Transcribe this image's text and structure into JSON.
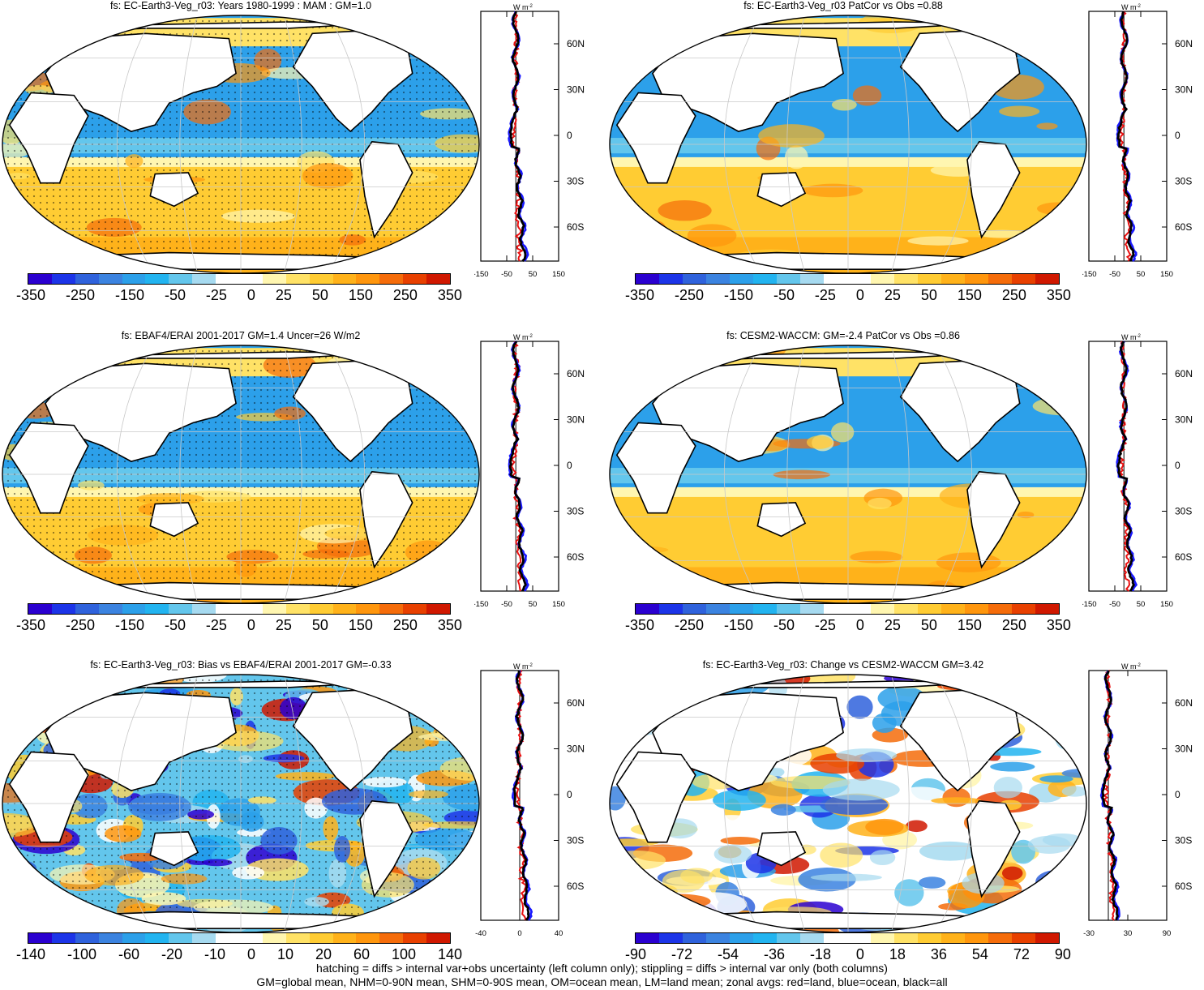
{
  "panels": [
    {
      "id": "p1",
      "title": "fs: EC-Earth3-Veg_r03: Years 1980-1999 : MAM : GM=1.0",
      "scale": "main",
      "variant": 0
    },
    {
      "id": "p2",
      "title": "fs: EC-Earth3-Veg_r03 PatCor vs Obs =0.88",
      "scale": "main",
      "variant": 1
    },
    {
      "id": "p3",
      "title": "fs: EBAF4/ERAI 2001-2017 GM=1.4 Uncer=26 W/m2",
      "scale": "main",
      "variant": 2
    },
    {
      "id": "p4",
      "title": "fs: CESM2-WACCM: GM=-2.4 PatCor vs Obs =0.86",
      "scale": "main",
      "variant": 3
    },
    {
      "id": "p5",
      "title": "fs: EC-Earth3-Veg_r03: Bias vs EBAF4/ERAI 2001-2017 GM=-0.33",
      "scale": "bias",
      "variant": 4
    },
    {
      "id": "p6",
      "title": "fs: EC-Earth3-Veg_r03: Change vs CESM2-WACCM GM=3.42",
      "scale": "change",
      "variant": 5
    }
  ],
  "colorbars": {
    "main": [
      "-350",
      "-250",
      "-150",
      "-50",
      "-25",
      "0",
      "25",
      "50",
      "150",
      "250",
      "350"
    ],
    "bias": [
      "-140",
      "-100",
      "-60",
      "-20",
      "-10",
      "0",
      "10",
      "20",
      "60",
      "100",
      "140"
    ],
    "change": [
      "-90",
      "-72",
      "-54",
      "-36",
      "-18",
      "0",
      "18",
      "36",
      "54",
      "72",
      "90"
    ]
  },
  "palette": [
    "#2a00d0",
    "#1c34e8",
    "#2f62dc",
    "#3b83e0",
    "#2ca0ea",
    "#22b4f0",
    "#63c6ec",
    "#a6daf0",
    "#ffffff",
    "#ffffff",
    "#fff6b0",
    "#ffe266",
    "#ffcc33",
    "#ffb21a",
    "#ff960d",
    "#f56c0a",
    "#e84000",
    "#d01800"
  ],
  "zonal_axis": {
    "unit_label": "W m",
    "unit_sup": "-2",
    "lat_labels": [
      "60N",
      "30N",
      "0",
      "30S",
      "60S"
    ],
    "x_main": [
      "-150",
      "-50",
      "50",
      "150"
    ],
    "x_bias": [
      "-40",
      "0",
      "40"
    ],
    "x_change": [
      "-30",
      "30",
      "90"
    ]
  },
  "footer": {
    "line1": "hatching = diffs > internal var+obs uncertainty (left column only); stippling = diffs > internal var only (both columns)",
    "line2": "GM=global mean, NHM=0-90N mean, SHM=0-90S mean, OM=ocean mean, LM=land mean; zonal avgs: red=land, blue=ocean, black=all"
  },
  "colors": {
    "ocean_blue": "#2ca0ea",
    "land": "#ffffff",
    "warm": "#ffcc33",
    "zonal_red": "#e81010",
    "zonal_blue": "#1a1aff",
    "zonal_black": "#000000"
  }
}
